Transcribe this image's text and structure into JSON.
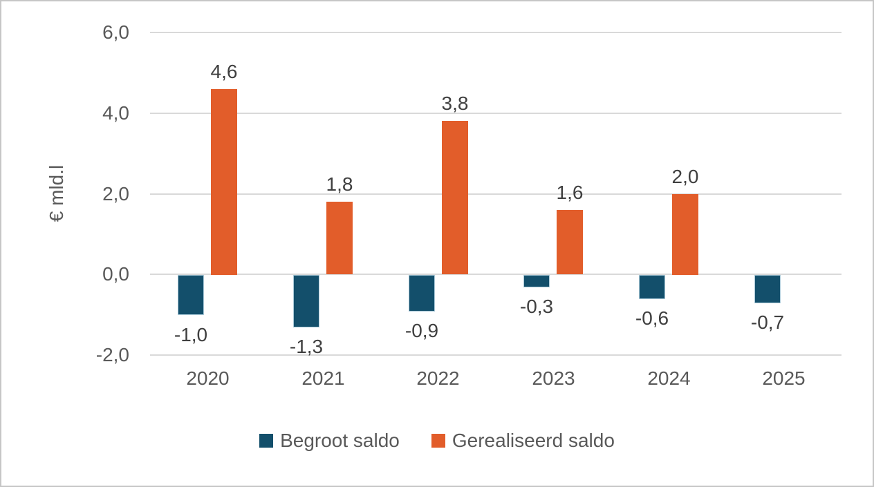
{
  "chart_data": {
    "type": "bar",
    "title": "",
    "ylabel": "€ mld.l",
    "xlabel": "",
    "categories": [
      "2020",
      "2021",
      "2022",
      "2023",
      "2024",
      "2025"
    ],
    "series": [
      {
        "name": "Begroot saldo",
        "color": "#134f6b",
        "border_color": "#a9c9d8",
        "values": [
          -1.0,
          -1.3,
          -0.9,
          -0.3,
          -0.6,
          -0.7
        ],
        "labels": [
          "-1,0",
          "-1,3",
          "-0,9",
          "-0,3",
          "-0,6",
          "-0,7"
        ]
      },
      {
        "name": "Gerealiseerd saldo",
        "color": "#e25d2a",
        "border_color": null,
        "values": [
          4.6,
          1.8,
          3.8,
          1.6,
          2.0,
          null
        ],
        "labels": [
          "4,6",
          "1,8",
          "3,8",
          "1,6",
          "2,0",
          null
        ]
      }
    ],
    "yticks": [
      {
        "label": "6,0",
        "value": 6
      },
      {
        "label": "4,0",
        "value": 4
      },
      {
        "label": "2,0",
        "value": 2
      },
      {
        "label": "0,0",
        "value": 0
      },
      {
        "label": "-2,0",
        "value": -2
      }
    ],
    "ylim": [
      -2,
      6
    ],
    "grid": true,
    "legend_position": "bottom",
    "colors": {
      "gridline": "#d9d9d9",
      "axis_text": "#595959",
      "data_label_text": "#3f3f3f",
      "frame_border": "#c6c6c6",
      "background": "#ffffff"
    }
  }
}
